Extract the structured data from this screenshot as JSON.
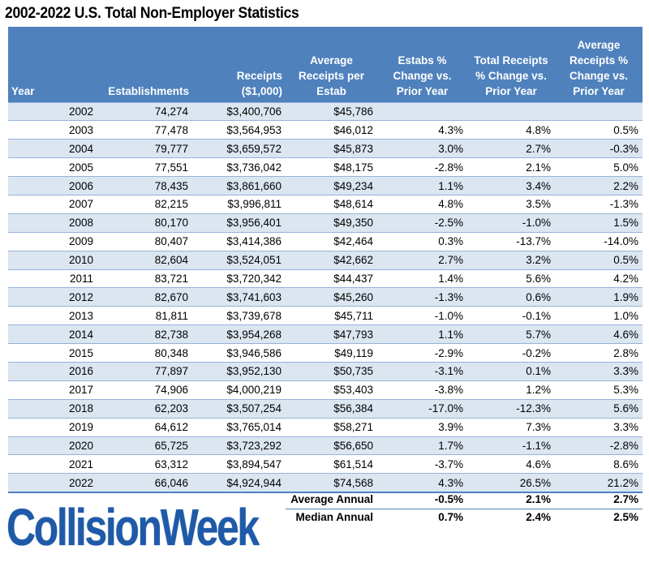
{
  "title": "2002-2022 U.S. Total Non-Employer Statistics",
  "table": {
    "headers": [
      "Year",
      "Establishments",
      "Receipts ($1,000)",
      "Average Receipts per Estab",
      "Estabs % Change vs. Prior Year",
      "Total Receipts % Change vs. Prior Year",
      "Average Receipts % Change vs. Prior Year"
    ],
    "rows": [
      [
        "2002",
        "74,274",
        "$3,400,706",
        "$45,786",
        "",
        "",
        ""
      ],
      [
        "2003",
        "77,478",
        "$3,564,953",
        "$46,012",
        "4.3%",
        "4.8%",
        "0.5%"
      ],
      [
        "2004",
        "79,777",
        "$3,659,572",
        "$45,873",
        "3.0%",
        "2.7%",
        "-0.3%"
      ],
      [
        "2005",
        "77,551",
        "$3,736,042",
        "$48,175",
        "-2.8%",
        "2.1%",
        "5.0%"
      ],
      [
        "2006",
        "78,435",
        "$3,861,660",
        "$49,234",
        "1.1%",
        "3.4%",
        "2.2%"
      ],
      [
        "2007",
        "82,215",
        "$3,996,811",
        "$48,614",
        "4.8%",
        "3.5%",
        "-1.3%"
      ],
      [
        "2008",
        "80,170",
        "$3,956,401",
        "$49,350",
        "-2.5%",
        "-1.0%",
        "1.5%"
      ],
      [
        "2009",
        "80,407",
        "$3,414,386",
        "$42,464",
        "0.3%",
        "-13.7%",
        "-14.0%"
      ],
      [
        "2010",
        "82,604",
        "$3,524,051",
        "$42,662",
        "2.7%",
        "3.2%",
        "0.5%"
      ],
      [
        "2011",
        "83,721",
        "$3,720,342",
        "$44,437",
        "1.4%",
        "5.6%",
        "4.2%"
      ],
      [
        "2012",
        "82,670",
        "$3,741,603",
        "$45,260",
        "-1.3%",
        "0.6%",
        "1.9%"
      ],
      [
        "2013",
        "81,811",
        "$3,739,678",
        "$45,711",
        "-1.0%",
        "-0.1%",
        "1.0%"
      ],
      [
        "2014",
        "82,738",
        "$3,954,268",
        "$47,793",
        "1.1%",
        "5.7%",
        "4.6%"
      ],
      [
        "2015",
        "80,348",
        "$3,946,586",
        "$49,119",
        "-2.9%",
        "-0.2%",
        "2.8%"
      ],
      [
        "2016",
        "77,897",
        "$3,952,130",
        "$50,735",
        "-3.1%",
        "0.1%",
        "3.3%"
      ],
      [
        "2017",
        "74,906",
        "$4,000,219",
        "$53,403",
        "-3.8%",
        "1.2%",
        "5.3%"
      ],
      [
        "2018",
        "62,203",
        "$3,507,254",
        "$56,384",
        "-17.0%",
        "-12.3%",
        "5.6%"
      ],
      [
        "2019",
        "64,612",
        "$3,765,014",
        "$58,271",
        "3.9%",
        "7.3%",
        "3.3%"
      ],
      [
        "2020",
        "65,725",
        "$3,723,292",
        "$56,650",
        "1.7%",
        "-1.1%",
        "-2.8%"
      ],
      [
        "2021",
        "63,312",
        "$3,894,547",
        "$61,514",
        "-3.7%",
        "4.6%",
        "8.6%"
      ],
      [
        "2022",
        "66,046",
        "$4,924,944",
        "$74,568",
        "4.3%",
        "26.5%",
        "21.2%"
      ]
    ]
  },
  "summary": {
    "average": {
      "label": "Average Annual",
      "values": [
        "-0.5%",
        "2.1%",
        "2.7%"
      ]
    },
    "median": {
      "label": "Median Annual",
      "values": [
        "0.7%",
        "2.4%",
        "2.5%"
      ]
    }
  },
  "logo": {
    "text": "CollisionWeek",
    "color": "#1f5aa8"
  },
  "colors": {
    "header_bg": "#4f81bd",
    "band": "#dce6f1",
    "rule": "#95b3d7"
  }
}
